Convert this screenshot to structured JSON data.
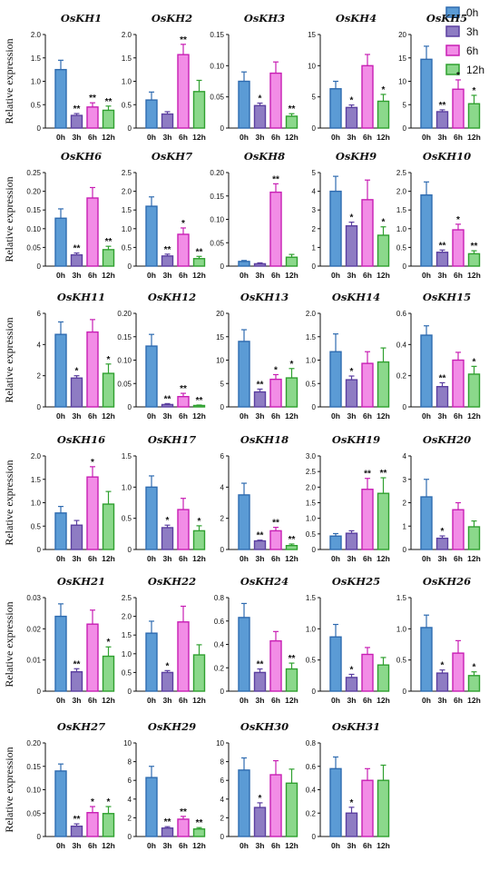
{
  "figure": {
    "ylabel": "Relative expression",
    "legend": [
      {
        "label": "0h",
        "fill": "#5B9BD5",
        "stroke": "#2E6BB0"
      },
      {
        "label": "3h",
        "fill": "#8E7CC3",
        "stroke": "#5B3FA0"
      },
      {
        "label": "6h",
        "fill": "#F28CE6",
        "stroke": "#C81EB4"
      },
      {
        "label": "12h",
        "fill": "#8BD88B",
        "stroke": "#2FA02F"
      }
    ]
  },
  "chart_data": [
    {
      "type": "bar",
      "title": "OsKH1",
      "categories": [
        "0h",
        "3h",
        "6h",
        "12h"
      ],
      "values": [
        1.25,
        0.27,
        0.45,
        0.38
      ],
      "errors": [
        0.2,
        0.04,
        0.09,
        0.09
      ],
      "significance": [
        "",
        "**",
        "**",
        "**"
      ],
      "ylim": [
        0,
        2.0
      ],
      "yticks": [
        0,
        0.5,
        1.0,
        1.5,
        2.0
      ],
      "yticklabels": [
        "0",
        "0.5",
        "1.0",
        "1.5",
        "2.0"
      ]
    },
    {
      "type": "bar",
      "title": "OsKH2",
      "categories": [
        "0h",
        "3h",
        "6h",
        "12h"
      ],
      "values": [
        0.6,
        0.3,
        1.57,
        0.78
      ],
      "errors": [
        0.17,
        0.05,
        0.22,
        0.24
      ],
      "significance": [
        "",
        "",
        "**",
        ""
      ],
      "ylim": [
        0,
        2.0
      ],
      "yticks": [
        0,
        0.5,
        1.0,
        1.5,
        2.0
      ],
      "yticklabels": [
        "0",
        "0.5",
        "1.0",
        "1.5",
        "2.0"
      ]
    },
    {
      "type": "bar",
      "title": "OsKH3",
      "categories": [
        "0h",
        "3h",
        "6h",
        "12h"
      ],
      "values": [
        0.075,
        0.036,
        0.088,
        0.019
      ],
      "errors": [
        0.015,
        0.004,
        0.018,
        0.004
      ],
      "significance": [
        "",
        "*",
        "",
        "**"
      ],
      "ylim": [
        0,
        0.15
      ],
      "yticks": [
        0,
        0.05,
        0.1,
        0.15
      ],
      "yticklabels": [
        "0",
        "0.05",
        "0.10",
        "0.15"
      ]
    },
    {
      "type": "bar",
      "title": "OsKH4",
      "categories": [
        "0h",
        "3h",
        "6h",
        "12h"
      ],
      "values": [
        6.3,
        3.3,
        10.0,
        4.3
      ],
      "errors": [
        1.2,
        0.4,
        1.8,
        1.1
      ],
      "significance": [
        "",
        "*",
        "",
        "*"
      ],
      "ylim": [
        0,
        15
      ],
      "yticks": [
        0,
        5,
        10,
        15
      ],
      "yticklabels": [
        "0",
        "5",
        "10",
        "15"
      ]
    },
    {
      "type": "bar",
      "title": "OsKH5",
      "categories": [
        "0h",
        "3h",
        "6h",
        "12h"
      ],
      "values": [
        14.7,
        3.5,
        8.3,
        5.2
      ],
      "errors": [
        2.8,
        0.4,
        2.0,
        1.8
      ],
      "significance": [
        "",
        "**",
        "*",
        "*"
      ],
      "ylim": [
        0,
        20
      ],
      "yticks": [
        0,
        5,
        10,
        15,
        20
      ],
      "yticklabels": [
        "0",
        "5",
        "10",
        "15",
        "20"
      ]
    },
    {
      "type": "bar",
      "title": "OsKH6",
      "categories": [
        "0h",
        "3h",
        "6h",
        "12h"
      ],
      "values": [
        0.128,
        0.03,
        0.182,
        0.044
      ],
      "errors": [
        0.025,
        0.005,
        0.028,
        0.009
      ],
      "significance": [
        "",
        "**",
        "",
        "**"
      ],
      "ylim": [
        0,
        0.25
      ],
      "yticks": [
        0,
        0.05,
        0.1,
        0.15,
        0.2,
        0.25
      ],
      "yticklabels": [
        "0",
        "0.05",
        "0.10",
        "0.15",
        "0.20",
        "0.25"
      ]
    },
    {
      "type": "bar",
      "title": "OsKH7",
      "categories": [
        "0h",
        "3h",
        "6h",
        "12h"
      ],
      "values": [
        1.6,
        0.27,
        0.85,
        0.2
      ],
      "errors": [
        0.25,
        0.05,
        0.17,
        0.06
      ],
      "significance": [
        "",
        "**",
        "*",
        "**"
      ],
      "ylim": [
        0,
        2.5
      ],
      "yticks": [
        0,
        0.5,
        1.0,
        1.5,
        2.0,
        2.5
      ],
      "yticklabels": [
        "0",
        "0.5",
        "1.0",
        "1.5",
        "2.0",
        "2.5"
      ]
    },
    {
      "type": "bar",
      "title": "OsKH8",
      "categories": [
        "0h",
        "3h",
        "6h",
        "12h"
      ],
      "values": [
        0.01,
        0.005,
        0.158,
        0.019
      ],
      "errors": [
        0.002,
        0.002,
        0.018,
        0.006
      ],
      "significance": [
        "",
        "",
        "**",
        ""
      ],
      "ylim": [
        0,
        0.2
      ],
      "yticks": [
        0,
        0.05,
        0.1,
        0.15,
        0.2
      ],
      "yticklabels": [
        "0",
        "0.05",
        "0.10",
        "0.15",
        "0.20"
      ]
    },
    {
      "type": "bar",
      "title": "OsKH9",
      "categories": [
        "0h",
        "3h",
        "6h",
        "12h"
      ],
      "values": [
        4.0,
        2.15,
        3.55,
        1.65
      ],
      "errors": [
        0.8,
        0.2,
        1.05,
        0.45
      ],
      "significance": [
        "",
        "*",
        "",
        "*"
      ],
      "ylim": [
        0,
        5
      ],
      "yticks": [
        0,
        1,
        2,
        3,
        4,
        5
      ],
      "yticklabels": [
        "0",
        "1",
        "2",
        "3",
        "4",
        "5"
      ]
    },
    {
      "type": "bar",
      "title": "OsKH10",
      "categories": [
        "0h",
        "3h",
        "6h",
        "12h"
      ],
      "values": [
        1.9,
        0.37,
        0.97,
        0.33
      ],
      "errors": [
        0.35,
        0.06,
        0.15,
        0.08
      ],
      "significance": [
        "",
        "**",
        "*",
        "**"
      ],
      "ylim": [
        0,
        2.5
      ],
      "yticks": [
        0,
        0.5,
        1.0,
        1.5,
        2.0,
        2.5
      ],
      "yticklabels": [
        "0",
        "0.5",
        "1.0",
        "1.5",
        "2.0",
        "2.5"
      ]
    },
    {
      "type": "bar",
      "title": "OsKH11",
      "categories": [
        "0h",
        "3h",
        "6h",
        "12h"
      ],
      "values": [
        4.65,
        1.85,
        4.8,
        2.15
      ],
      "errors": [
        0.8,
        0.15,
        0.8,
        0.6
      ],
      "significance": [
        "",
        "*",
        "",
        "*"
      ],
      "ylim": [
        0,
        6
      ],
      "yticks": [
        0,
        2,
        4,
        6
      ],
      "yticklabels": [
        "0",
        "2",
        "4",
        "6"
      ]
    },
    {
      "type": "bar",
      "title": "OsKH12",
      "categories": [
        "0h",
        "3h",
        "6h",
        "12h"
      ],
      "values": [
        0.13,
        0.005,
        0.022,
        0.003
      ],
      "errors": [
        0.025,
        0.002,
        0.007,
        0.001
      ],
      "significance": [
        "",
        "**",
        "**",
        "**"
      ],
      "ylim": [
        0,
        0.2
      ],
      "yticks": [
        0,
        0.05,
        0.1,
        0.15,
        0.2
      ],
      "yticklabels": [
        "0",
        "0.05",
        "0.10",
        "0.15",
        "0.20"
      ]
    },
    {
      "type": "bar",
      "title": "OsKH13",
      "categories": [
        "0h",
        "3h",
        "6h",
        "12h"
      ],
      "values": [
        14.0,
        3.2,
        5.9,
        6.2
      ],
      "errors": [
        2.5,
        0.6,
        1.0,
        2.0
      ],
      "significance": [
        "",
        "**",
        "*",
        "*"
      ],
      "ylim": [
        0,
        20
      ],
      "yticks": [
        0,
        5,
        10,
        15,
        20
      ],
      "yticklabels": [
        "0",
        "5",
        "10",
        "15",
        "20"
      ]
    },
    {
      "type": "bar",
      "title": "OsKH14",
      "categories": [
        "0h",
        "3h",
        "6h",
        "12h"
      ],
      "values": [
        1.18,
        0.58,
        0.93,
        0.96
      ],
      "errors": [
        0.38,
        0.08,
        0.25,
        0.3
      ],
      "significance": [
        "",
        "*",
        "",
        ""
      ],
      "ylim": [
        0,
        2.0
      ],
      "yticks": [
        0,
        0.5,
        1.0,
        1.5,
        2.0
      ],
      "yticklabels": [
        "0",
        "0.5",
        "1.0",
        "1.5",
        "2.0"
      ]
    },
    {
      "type": "bar",
      "title": "OsKH15",
      "categories": [
        "0h",
        "3h",
        "6h",
        "12h"
      ],
      "values": [
        0.46,
        0.13,
        0.3,
        0.21
      ],
      "errors": [
        0.06,
        0.025,
        0.05,
        0.05
      ],
      "significance": [
        "",
        "**",
        "",
        "*"
      ],
      "ylim": [
        0,
        0.6
      ],
      "yticks": [
        0,
        0.2,
        0.4,
        0.6
      ],
      "yticklabels": [
        "0",
        "0.2",
        "0.4",
        "0.6"
      ]
    },
    {
      "type": "bar",
      "title": "OsKH16",
      "categories": [
        "0h",
        "3h",
        "6h",
        "12h"
      ],
      "values": [
        0.78,
        0.52,
        1.55,
        0.97
      ],
      "errors": [
        0.14,
        0.1,
        0.22,
        0.27
      ],
      "significance": [
        "",
        "",
        "*",
        ""
      ],
      "ylim": [
        0,
        2.0
      ],
      "yticks": [
        0,
        0.5,
        1.0,
        1.5,
        2.0
      ],
      "yticklabels": [
        "0",
        "0.5",
        "1.0",
        "1.5",
        "2.0"
      ]
    },
    {
      "type": "bar",
      "title": "OsKH17",
      "categories": [
        "0h",
        "3h",
        "6h",
        "12h"
      ],
      "values": [
        1.0,
        0.35,
        0.64,
        0.3
      ],
      "errors": [
        0.18,
        0.04,
        0.18,
        0.08
      ],
      "significance": [
        "",
        "*",
        "",
        "*"
      ],
      "ylim": [
        0,
        1.5
      ],
      "yticks": [
        0,
        0.5,
        1.0,
        1.5
      ],
      "yticklabels": [
        "0",
        "0.5",
        "1.0",
        "1.5"
      ]
    },
    {
      "type": "bar",
      "title": "OsKH18",
      "categories": [
        "0h",
        "3h",
        "6h",
        "12h"
      ],
      "values": [
        3.5,
        0.55,
        1.2,
        0.25
      ],
      "errors": [
        0.75,
        0.05,
        0.22,
        0.1
      ],
      "significance": [
        "",
        "**",
        "**",
        "**"
      ],
      "ylim": [
        0,
        6
      ],
      "yticks": [
        0,
        2,
        4,
        6
      ],
      "yticklabels": [
        "0",
        "2",
        "4",
        "6"
      ]
    },
    {
      "type": "bar",
      "title": "OsKH19",
      "categories": [
        "0h",
        "3h",
        "6h",
        "12h"
      ],
      "values": [
        0.43,
        0.52,
        1.93,
        1.8
      ],
      "errors": [
        0.08,
        0.08,
        0.35,
        0.5
      ],
      "significance": [
        "",
        "",
        "**",
        "**"
      ],
      "ylim": [
        0,
        3.0
      ],
      "yticks": [
        0,
        0.5,
        1.0,
        1.5,
        2.0,
        2.5,
        3.0
      ],
      "yticklabels": [
        "0",
        "0.5",
        "1.0",
        "1.5",
        "2.0",
        "2.5",
        "3.0"
      ]
    },
    {
      "type": "bar",
      "title": "OsKH20",
      "categories": [
        "0h",
        "3h",
        "6h",
        "12h"
      ],
      "values": [
        2.25,
        0.48,
        1.7,
        0.97
      ],
      "errors": [
        0.75,
        0.1,
        0.3,
        0.25
      ],
      "significance": [
        "",
        "*",
        "",
        ""
      ],
      "ylim": [
        0,
        4
      ],
      "yticks": [
        0,
        1,
        2,
        3,
        4
      ],
      "yticklabels": [
        "0",
        "1",
        "2",
        "3",
        "4"
      ]
    },
    {
      "type": "bar",
      "title": "OsKH21",
      "categories": [
        "0h",
        "3h",
        "6h",
        "12h"
      ],
      "values": [
        0.024,
        0.0062,
        0.0215,
        0.0112
      ],
      "errors": [
        0.004,
        0.001,
        0.0045,
        0.003
      ],
      "significance": [
        "",
        "**",
        "",
        "*"
      ],
      "ylim": [
        0,
        0.03
      ],
      "yticks": [
        0,
        0.01,
        0.02,
        0.03
      ],
      "yticklabels": [
        "0",
        "0.01",
        "0.02",
        "0.03"
      ]
    },
    {
      "type": "bar",
      "title": "OsKH22",
      "categories": [
        "0h",
        "3h",
        "6h",
        "12h"
      ],
      "values": [
        1.55,
        0.5,
        1.85,
        0.97
      ],
      "errors": [
        0.32,
        0.05,
        0.42,
        0.27
      ],
      "significance": [
        "",
        "*",
        "",
        ""
      ],
      "ylim": [
        0,
        2.5
      ],
      "yticks": [
        0,
        0.5,
        1.0,
        1.5,
        2.0,
        2.5
      ],
      "yticklabels": [
        "0",
        "0.5",
        "1.0",
        "1.5",
        "2.0",
        "2.5"
      ]
    },
    {
      "type": "bar",
      "title": "OsKH24",
      "categories": [
        "0h",
        "3h",
        "6h",
        "12h"
      ],
      "values": [
        0.63,
        0.16,
        0.43,
        0.19
      ],
      "errors": [
        0.12,
        0.03,
        0.08,
        0.05
      ],
      "significance": [
        "",
        "**",
        "",
        "**"
      ],
      "ylim": [
        0,
        0.8
      ],
      "yticks": [
        0,
        0.2,
        0.4,
        0.6,
        0.8
      ],
      "yticklabels": [
        "0",
        "0.2",
        "0.4",
        "0.6",
        "0.8"
      ]
    },
    {
      "type": "bar",
      "title": "OsKH25",
      "categories": [
        "0h",
        "3h",
        "6h",
        "12h"
      ],
      "values": [
        0.87,
        0.22,
        0.59,
        0.42
      ],
      "errors": [
        0.2,
        0.05,
        0.11,
        0.12
      ],
      "significance": [
        "",
        "*",
        "",
        ""
      ],
      "ylim": [
        0,
        1.5
      ],
      "yticks": [
        0,
        0.5,
        1.0,
        1.5
      ],
      "yticklabels": [
        "0",
        "0.5",
        "1.0",
        "1.5"
      ]
    },
    {
      "type": "bar",
      "title": "OsKH26",
      "categories": [
        "0h",
        "3h",
        "6h",
        "12h"
      ],
      "values": [
        1.02,
        0.29,
        0.61,
        0.25
      ],
      "errors": [
        0.2,
        0.05,
        0.2,
        0.06
      ],
      "significance": [
        "",
        "*",
        "",
        "*"
      ],
      "ylim": [
        0,
        1.5
      ],
      "yticks": [
        0,
        0.5,
        1.0,
        1.5
      ],
      "yticklabels": [
        "0",
        "0.5",
        "1.0",
        "1.5"
      ]
    },
    {
      "type": "bar",
      "title": "OsKH27",
      "categories": [
        "0h",
        "3h",
        "6h",
        "12h"
      ],
      "values": [
        0.14,
        0.022,
        0.051,
        0.049
      ],
      "errors": [
        0.015,
        0.005,
        0.013,
        0.015
      ],
      "significance": [
        "",
        "**",
        "*",
        "*"
      ],
      "ylim": [
        0,
        0.2
      ],
      "yticks": [
        0,
        0.05,
        0.1,
        0.15,
        0.2
      ],
      "yticklabels": [
        "0",
        "0.05",
        "0.10",
        "0.15",
        "0.20"
      ]
    },
    {
      "type": "bar",
      "title": "OsKH29",
      "categories": [
        "0h",
        "3h",
        "6h",
        "12h"
      ],
      "values": [
        6.3,
        0.9,
        1.85,
        0.8
      ],
      "errors": [
        1.2,
        0.15,
        0.3,
        0.15
      ],
      "significance": [
        "",
        "**",
        "**",
        "**"
      ],
      "ylim": [
        0,
        10
      ],
      "yticks": [
        0,
        2,
        4,
        6,
        8,
        10
      ],
      "yticklabels": [
        "0",
        "2",
        "4",
        "6",
        "8",
        "10"
      ]
    },
    {
      "type": "bar",
      "title": "OsKH30",
      "categories": [
        "0h",
        "3h",
        "6h",
        "12h"
      ],
      "values": [
        7.1,
        3.1,
        6.6,
        5.7
      ],
      "errors": [
        1.3,
        0.5,
        1.5,
        1.5
      ],
      "significance": [
        "",
        "*",
        "",
        ""
      ],
      "ylim": [
        0,
        10
      ],
      "yticks": [
        0,
        2,
        4,
        6,
        8,
        10
      ],
      "yticklabels": [
        "0",
        "2",
        "4",
        "6",
        "8",
        "10"
      ]
    },
    {
      "type": "bar",
      "title": "OsKH31",
      "categories": [
        "0h",
        "3h",
        "6h",
        "12h"
      ],
      "values": [
        0.58,
        0.2,
        0.48,
        0.48
      ],
      "errors": [
        0.1,
        0.05,
        0.1,
        0.13
      ],
      "significance": [
        "",
        "*",
        "",
        ""
      ],
      "ylim": [
        0,
        0.8
      ],
      "yticks": [
        0,
        0.2,
        0.4,
        0.6,
        0.8
      ],
      "yticklabels": [
        "0",
        "0.2",
        "0.4",
        "0.6",
        "0.8"
      ]
    }
  ]
}
